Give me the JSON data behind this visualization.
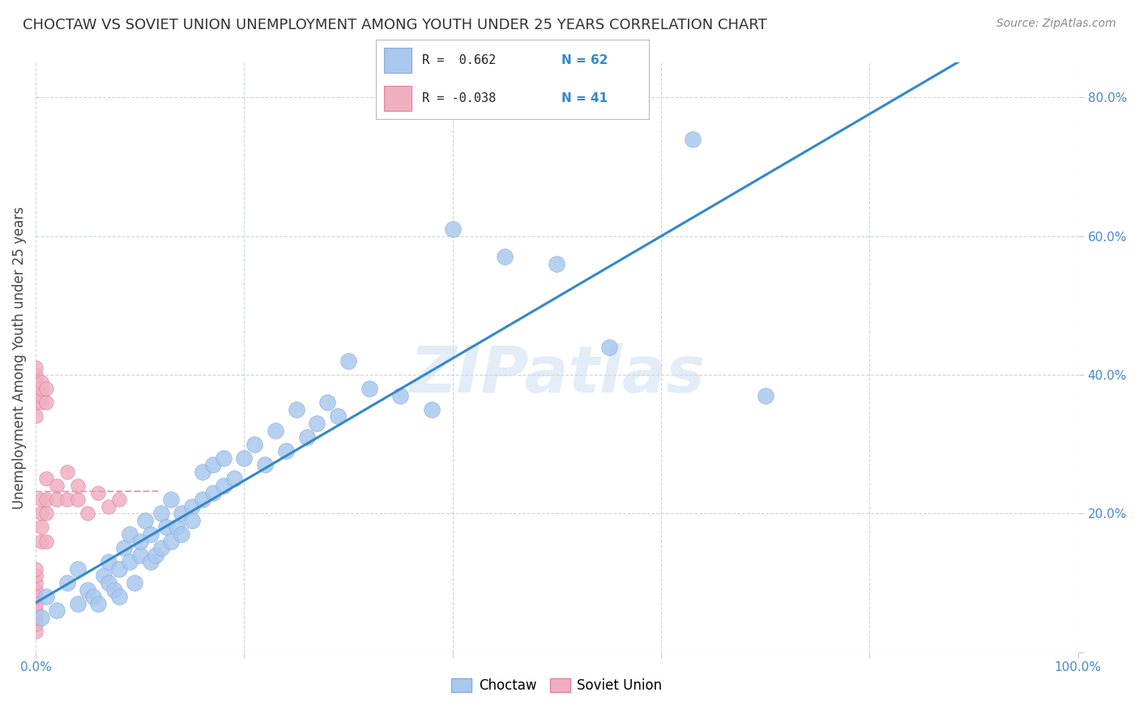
{
  "title": "CHOCTAW VS SOVIET UNION UNEMPLOYMENT AMONG YOUTH UNDER 25 YEARS CORRELATION CHART",
  "source": "Source: ZipAtlas.com",
  "ylabel": "Unemployment Among Youth under 25 years",
  "xlim": [
    0.0,
    1.0
  ],
  "ylim": [
    0.0,
    0.85
  ],
  "bg_color": "#ffffff",
  "grid_color": "#c8d0dc",
  "choctaw_color": "#aac8ee",
  "soviet_color": "#f0b0c0",
  "choctaw_edge": "#88aad8",
  "soviet_edge": "#e080a0",
  "trendline_choctaw_color": "#3388cc",
  "trendline_soviet_color": "#e8a0b0",
  "legend_r_choctaw": "R =  0.662",
  "legend_n_choctaw": "N = 62",
  "legend_r_soviet": "R = -0.038",
  "legend_n_soviet": "N = 41",
  "watermark": "ZIPatlas",
  "choctaw_R": 0.662,
  "soviet_R": -0.038,
  "choctaw_x": [
    0.005,
    0.01,
    0.02,
    0.03,
    0.04,
    0.04,
    0.05,
    0.055,
    0.06,
    0.065,
    0.07,
    0.07,
    0.075,
    0.08,
    0.08,
    0.085,
    0.09,
    0.09,
    0.095,
    0.1,
    0.1,
    0.105,
    0.11,
    0.11,
    0.115,
    0.12,
    0.12,
    0.125,
    0.13,
    0.13,
    0.135,
    0.14,
    0.14,
    0.15,
    0.15,
    0.16,
    0.16,
    0.17,
    0.17,
    0.18,
    0.18,
    0.19,
    0.2,
    0.21,
    0.22,
    0.23,
    0.24,
    0.25,
    0.26,
    0.27,
    0.28,
    0.29,
    0.3,
    0.32,
    0.35,
    0.38,
    0.4,
    0.45,
    0.5,
    0.55,
    0.63,
    0.7
  ],
  "choctaw_y": [
    0.05,
    0.08,
    0.06,
    0.1,
    0.07,
    0.12,
    0.09,
    0.08,
    0.07,
    0.11,
    0.13,
    0.1,
    0.09,
    0.08,
    0.12,
    0.15,
    0.13,
    0.17,
    0.1,
    0.14,
    0.16,
    0.19,
    0.13,
    0.17,
    0.14,
    0.15,
    0.2,
    0.18,
    0.16,
    0.22,
    0.18,
    0.2,
    0.17,
    0.21,
    0.19,
    0.22,
    0.26,
    0.23,
    0.27,
    0.24,
    0.28,
    0.25,
    0.28,
    0.3,
    0.27,
    0.32,
    0.29,
    0.35,
    0.31,
    0.33,
    0.36,
    0.34,
    0.42,
    0.38,
    0.37,
    0.35,
    0.61,
    0.57,
    0.56,
    0.44,
    0.74,
    0.37
  ],
  "soviet_x": [
    0.0,
    0.0,
    0.0,
    0.0,
    0.0,
    0.0,
    0.0,
    0.0,
    0.0,
    0.0,
    0.0,
    0.0,
    0.0,
    0.0,
    0.0,
    0.0,
    0.0,
    0.005,
    0.005,
    0.005,
    0.005,
    0.005,
    0.005,
    0.005,
    0.005,
    0.01,
    0.01,
    0.01,
    0.01,
    0.01,
    0.01,
    0.02,
    0.02,
    0.03,
    0.03,
    0.04,
    0.04,
    0.05,
    0.06,
    0.07,
    0.08
  ],
  "soviet_y": [
    0.03,
    0.04,
    0.05,
    0.06,
    0.07,
    0.08,
    0.09,
    0.1,
    0.11,
    0.12,
    0.34,
    0.36,
    0.37,
    0.38,
    0.39,
    0.4,
    0.41,
    0.16,
    0.18,
    0.2,
    0.22,
    0.36,
    0.37,
    0.38,
    0.39,
    0.16,
    0.2,
    0.22,
    0.25,
    0.36,
    0.38,
    0.22,
    0.24,
    0.22,
    0.26,
    0.22,
    0.24,
    0.2,
    0.23,
    0.21,
    0.22
  ]
}
